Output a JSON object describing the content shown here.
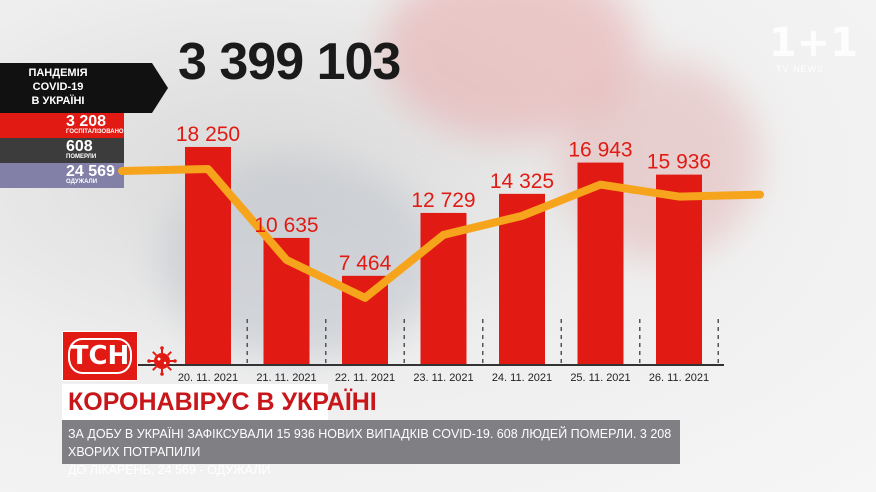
{
  "header": {
    "total_cases": "3 399 103",
    "broadcaster_logo": "1+1",
    "broadcaster_sub": "TV NEWS"
  },
  "stats_panel": {
    "title": "ПАНДЕМІЯ COVID-19 В УКРАЇНІ",
    "title_lines": [
      "ПАНДЕМІЯ",
      "COVID-19",
      "В УКРАЇНІ"
    ],
    "hospitalized": {
      "value": "3 208",
      "label": "ГОСПІТАЛІЗОВАНО"
    },
    "deaths": {
      "value": "608",
      "label": "ПОМЕРЛИ"
    },
    "recovered": {
      "value": "24 569",
      "label": "ОДУЖАЛИ"
    }
  },
  "lower_third": {
    "channel_logo": "ТСН",
    "headline": "КОРОНАВІРУС В УКРАЇНІ",
    "ticker": "ЗА ДОБУ В УКРАЇНІ ЗАФІКСУВАЛИ 15 936 НОВИХ ВИПАДКІВ COVID-19. 608 ЛЮДЕЙ ПОМЕРЛИ. 3 208 ХВОРИХ ПОТРАПИЛИ ДО ЛІКАРЕНЬ, 24 569 - ОДУЖАЛИ",
    "ticker_lines": [
      "ЗА ДОБУ В УКРАЇНІ ЗАФІКСУВАЛИ 15 936 НОВИХ ВИПАДКІВ COVID-19. 608 ЛЮДЕЙ ПОМЕРЛИ. 3 208 ХВОРИХ ПОТРАПИЛИ",
      "ДО ЛІКАРЕНЬ, 24 569 - ОДУЖАЛИ"
    ]
  },
  "colors": {
    "bar": "#e11b13",
    "trend_line": "#f6a41c",
    "value_label": "#e11b13",
    "headline_text": "#c8171a"
  },
  "chart_data": {
    "type": "bar",
    "categories": [
      "20. 11. 2021",
      "21. 11. 2021",
      "22. 11. 2021",
      "23. 11. 2021",
      "24. 11. 2021",
      "25. 11. 2021",
      "26. 11. 2021"
    ],
    "values": [
      18250,
      10635,
      7464,
      12729,
      14325,
      16943,
      15936
    ],
    "value_labels": [
      "18 250",
      "10 635",
      "7 464",
      "12 729",
      "14 325",
      "16 943",
      "15 936"
    ],
    "overlay": "line",
    "title": "",
    "xlabel": "",
    "ylabel": "",
    "grid": false,
    "legend": "none"
  }
}
